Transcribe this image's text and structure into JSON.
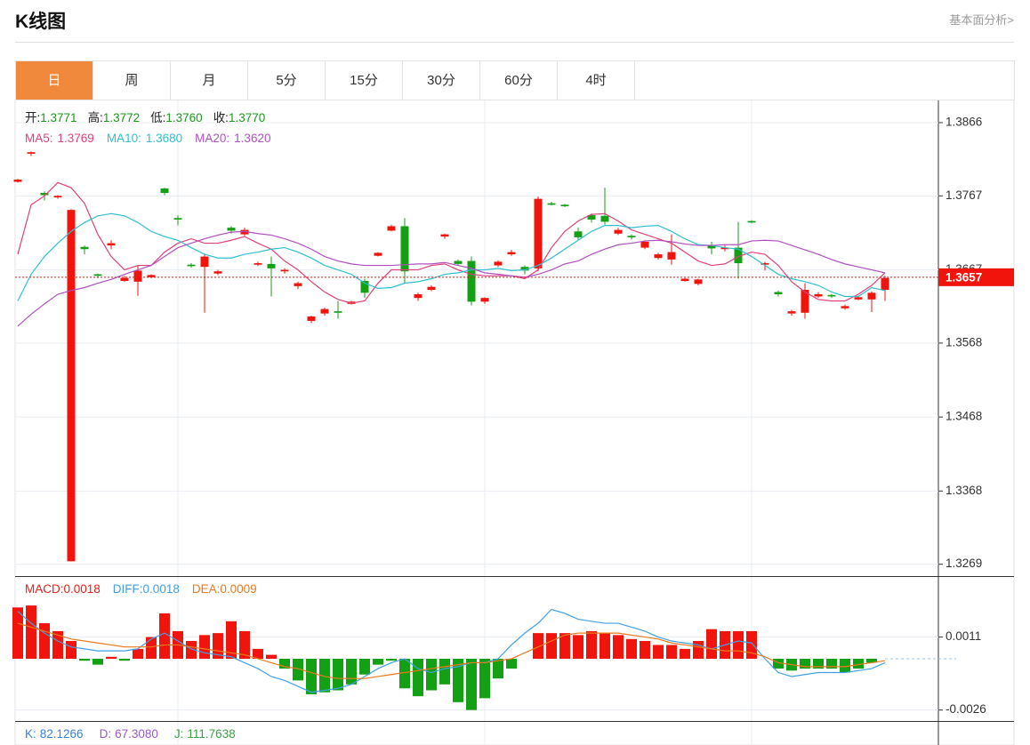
{
  "header": {
    "title": "K线图",
    "link": "基本面分析>"
  },
  "tabs": {
    "items": [
      "日",
      "周",
      "月",
      "5分",
      "15分",
      "30分",
      "60分",
      "4时"
    ],
    "active": 0
  },
  "chart_data": [
    {
      "type": "candlestick",
      "info": {
        "labels": [
          "开:",
          "高:",
          "低:",
          "收:"
        ],
        "values": [
          1.3771,
          1.3772,
          1.376,
          1.377
        ],
        "value_labels": [
          "1.3771",
          "1.3772",
          "1.3760",
          "1.3770"
        ],
        "color": "#1a9a1a"
      },
      "categories": [
        null,
        null,
        null,
        null,
        null,
        null,
        null,
        null,
        null,
        null,
        null,
        null,
        null,
        null,
        null,
        null,
        null,
        null,
        null,
        null,
        null,
        null,
        null,
        null,
        null,
        null,
        null,
        null,
        null,
        null,
        null,
        null,
        null,
        null,
        null,
        null,
        null,
        null,
        null,
        null,
        null,
        null,
        null,
        null,
        null,
        null,
        null,
        null,
        null,
        null,
        null,
        null,
        null,
        null,
        null,
        null,
        null,
        null,
        null,
        null,
        null,
        null,
        null,
        null,
        null,
        null
      ],
      "open": [
        1.3786,
        1.3824,
        1.3771,
        1.3765,
        1.3273,
        1.3698,
        1.3661,
        1.37,
        1.3652,
        1.3651,
        1.3657,
        1.3777,
        1.3737,
        1.3674,
        1.3671,
        1.3662,
        1.3724,
        1.3715,
        1.3674,
        1.3675,
        1.3665,
        1.3645,
        1.3598,
        1.3608,
        1.3611,
        1.3621,
        1.3652,
        1.3686,
        1.372,
        1.3726,
        1.3629,
        1.364,
        1.3712,
        1.3679,
        1.3679,
        1.3624,
        1.3673,
        1.3688,
        1.3671,
        1.3669,
        1.3757,
        1.3755,
        1.3719,
        1.3741,
        1.374,
        1.3716,
        1.3713,
        1.3697,
        1.3683,
        1.3681,
        1.3652,
        1.3648,
        1.37,
        1.3695,
        1.3697,
        1.3733,
        1.3674,
        1.3637,
        1.3608,
        1.3609,
        1.3631,
        1.3633,
        1.3615,
        1.3627,
        1.3627,
        1.364
      ],
      "close": [
        1.3789,
        1.3826,
        1.3768,
        1.3767,
        1.3748,
        1.3695,
        1.3659,
        1.3703,
        1.3656,
        1.3666,
        1.366,
        1.3771,
        1.3735,
        1.3672,
        1.3685,
        1.3665,
        1.372,
        1.3721,
        1.3676,
        1.3669,
        1.3667,
        1.3649,
        1.3604,
        1.3614,
        1.3609,
        1.3624,
        1.3636,
        1.369,
        1.3726,
        1.3665,
        1.3634,
        1.3644,
        1.3715,
        1.3675,
        1.3624,
        1.3629,
        1.3678,
        1.3691,
        1.3666,
        1.3763,
        1.3755,
        1.3753,
        1.3711,
        1.3735,
        1.3732,
        1.3721,
        1.3711,
        1.3705,
        1.3688,
        1.3691,
        1.3655,
        1.3654,
        1.3696,
        1.3697,
        1.3676,
        1.3731,
        1.3676,
        1.3634,
        1.3611,
        1.364,
        1.3634,
        1.3631,
        1.3618,
        1.363,
        1.3636,
        1.3656
      ],
      "high": [
        1.379,
        1.3827,
        1.3773,
        1.3768,
        1.3749,
        1.37,
        1.3662,
        1.3707,
        1.3659,
        1.3673,
        1.3661,
        1.3778,
        1.3741,
        1.3676,
        1.3689,
        1.3667,
        1.3726,
        1.3724,
        1.3678,
        1.3685,
        1.3669,
        1.3651,
        1.3605,
        1.3616,
        1.3625,
        1.3625,
        1.3655,
        1.3691,
        1.3728,
        1.3737,
        1.3636,
        1.3646,
        1.3716,
        1.3681,
        1.3685,
        1.363,
        1.368,
        1.3694,
        1.3673,
        1.3766,
        1.3759,
        1.3756,
        1.3724,
        1.3743,
        1.3778,
        1.3724,
        1.3715,
        1.3707,
        1.369,
        1.3715,
        1.3656,
        1.3655,
        1.3705,
        1.37,
        1.3732,
        1.3734,
        1.3678,
        1.3639,
        1.3613,
        1.3649,
        1.3637,
        1.3634,
        1.362,
        1.3632,
        1.3638,
        1.3659
      ],
      "low": [
        1.3785,
        1.3821,
        1.3761,
        1.3763,
        1.3273,
        1.3688,
        1.3656,
        1.3695,
        1.3651,
        1.3632,
        1.3656,
        1.3768,
        1.3727,
        1.367,
        1.3609,
        1.366,
        1.3716,
        1.3713,
        1.3672,
        1.3631,
        1.3662,
        1.3641,
        1.3595,
        1.3605,
        1.3601,
        1.362,
        1.3629,
        1.3685,
        1.3719,
        1.3649,
        1.3625,
        1.3638,
        1.3709,
        1.3673,
        1.3619,
        1.3621,
        1.3671,
        1.3686,
        1.3661,
        1.3665,
        1.3754,
        1.3752,
        1.3707,
        1.3731,
        1.3728,
        1.3714,
        1.3708,
        1.3695,
        1.3681,
        1.3674,
        1.3651,
        1.3646,
        1.3688,
        1.3692,
        1.3655,
        1.373,
        1.3666,
        1.3631,
        1.3605,
        1.3601,
        1.3629,
        1.3629,
        1.3613,
        1.3626,
        1.361,
        1.3625
      ],
      "up_color": "#f0140c",
      "down_color": "#14a014",
      "series": [
        {
          "name": "MA5:",
          "color": "#e0407a",
          "legend_value": 1.3769,
          "legend_label": "1.3769",
          "values": [
            1.3688,
            1.3755,
            1.3767,
            1.3785,
            1.3778,
            1.3757,
            1.3715,
            1.3685,
            1.3667,
            1.3673,
            1.3673,
            1.3691,
            1.3703,
            1.3709,
            1.3703,
            1.3703,
            1.3707,
            1.3712,
            1.3703,
            1.3695,
            1.3679,
            1.3667,
            1.3651,
            1.3637,
            1.3627,
            1.3622,
            1.3625,
            1.3649,
            1.3667,
            1.3667,
            1.3667,
            1.3673,
            1.3675,
            1.3667,
            1.3661,
            1.3659,
            1.3659,
            1.3659,
            1.3655,
            1.3667,
            1.3697,
            1.3719,
            1.3733,
            1.3742,
            1.3743,
            1.3733,
            1.3721,
            1.3715,
            1.3709,
            1.3703,
            1.3691,
            1.3679,
            1.3673,
            1.3675,
            1.3685,
            1.3691,
            1.3688,
            1.3673,
            1.3651,
            1.3637,
            1.3627,
            1.3625,
            1.3625,
            1.3634,
            1.3646,
            1.3663
          ]
        },
        {
          "name": "MA10:",
          "color": "#2fbfd0",
          "legend_value": 1.368,
          "legend_label": "1.3680",
          "values": [
            1.3625,
            1.3661,
            1.3685,
            1.3703,
            1.3719,
            1.3731,
            1.374,
            1.3743,
            1.374,
            1.3731,
            1.3719,
            1.3712,
            1.3707,
            1.3697,
            1.3688,
            1.3683,
            1.3683,
            1.3688,
            1.3691,
            1.3695,
            1.3697,
            1.3691,
            1.3683,
            1.3673,
            1.3667,
            1.3661,
            1.3649,
            1.3642,
            1.3643,
            1.3649,
            1.3651,
            1.3655,
            1.3661,
            1.3663,
            1.3667,
            1.3667,
            1.3669,
            1.3666,
            1.3667,
            1.3673,
            1.3683,
            1.3695,
            1.3707,
            1.3719,
            1.3727,
            1.3727,
            1.3724,
            1.3726,
            1.3727,
            1.3719,
            1.3709,
            1.3701,
            1.37,
            1.3697,
            1.3695,
            1.3685,
            1.3673,
            1.3661,
            1.3655,
            1.3651,
            1.3646,
            1.3637,
            1.3631,
            1.3631,
            1.3643,
            1.3639
          ]
        },
        {
          "name": "MA20:",
          "color": "#b050c0",
          "legend_value": 1.362,
          "legend_label": "1.3620",
          "values": [
            1.3591,
            1.3607,
            1.3621,
            1.3634,
            1.3639,
            1.3643,
            1.3649,
            1.3654,
            1.3661,
            1.3667,
            1.3673,
            1.3685,
            1.3697,
            1.3703,
            1.3709,
            1.3714,
            1.3718,
            1.3719,
            1.3716,
            1.3714,
            1.3709,
            1.3703,
            1.3695,
            1.3685,
            1.3679,
            1.3675,
            1.3673,
            1.3673,
            1.3673,
            1.3674,
            1.3675,
            1.3675,
            1.3677,
            1.3673,
            1.3669,
            1.3663,
            1.3661,
            1.3659,
            1.3657,
            1.3661,
            1.3667,
            1.3675,
            1.3679,
            1.3688,
            1.3695,
            1.3701,
            1.3703,
            1.3706,
            1.3707,
            1.3705,
            1.3702,
            1.37,
            1.37,
            1.3701,
            1.3701,
            1.3706,
            1.3707,
            1.3706,
            1.37,
            1.3694,
            1.3688,
            1.3681,
            1.3675,
            1.3671,
            1.3667,
            1.3663
          ]
        }
      ],
      "ylim": [
        1.3253,
        1.3896
      ],
      "yticks": [
        1.3269,
        1.3368,
        1.3468,
        1.3568,
        1.3667,
        1.3767,
        1.3866
      ],
      "current_price": 1.3657,
      "grid": true
    },
    {
      "type": "macd",
      "label": "MACD:",
      "legend_value": 0.0018,
      "color": "#e8201a",
      "values": [
        0.0026,
        0.0027,
        0.0018,
        0.0014,
        0.0009,
        -0.0001,
        -0.0003,
        0.0001,
        -0.0001,
        0.0005,
        0.0011,
        0.0023,
        0.0014,
        0.0009,
        0.0012,
        0.0013,
        0.0019,
        0.0014,
        0.0005,
        0.0002,
        -0.0005,
        -0.0011,
        -0.0018,
        -0.0017,
        -0.0016,
        -0.0013,
        -0.0008,
        -0.0003,
        -0.0001,
        -0.0015,
        -0.0019,
        -0.0016,
        -0.0013,
        -0.0022,
        -0.0026,
        -0.002,
        -0.001,
        -0.0005,
        0,
        0.0013,
        0.0013,
        0.0013,
        0.0012,
        0.0014,
        0.0013,
        0.0012,
        0.001,
        0.0009,
        0.0007,
        0.0007,
        0.0005,
        0.0009,
        0.0015,
        0.0014,
        0.0014,
        0.0014,
        0,
        -0.0005,
        -0.0006,
        -0.0005,
        -0.0005,
        -0.0005,
        -0.0007,
        -0.0005,
        -0.0002,
        0
      ],
      "up_color": "#f0140c",
      "down_color": "#14a014",
      "series": [
        {
          "name": "DIFF:",
          "color": "#3fa0e8",
          "legend_value": 0.0018,
          "values": [
            0.0024,
            0.0018,
            0.0013,
            0.0009,
            0.0006,
            0.0005,
            0.0004,
            0.0004,
            0.0004,
            0.0005,
            0.001,
            0.0013,
            0.0009,
            0.0005,
            0.0003,
            0.0002,
            0.0001,
            -0.0002,
            -0.0005,
            -0.0009,
            -0.0011,
            -0.0014,
            -0.0017,
            -0.0016,
            -0.0015,
            -0.0013,
            -0.0009,
            -0.0005,
            -0.0002,
            0,
            -0.0005,
            -0.0007,
            -0.0005,
            -0.0004,
            -0.0002,
            -0.0002,
            0,
            0.0007,
            0.0013,
            0.0018,
            0.0025,
            0.0023,
            0.002,
            0.0019,
            0.0018,
            0.0018,
            0.0016,
            0.0014,
            0.0011,
            0.0009,
            0.0008,
            0.0007,
            0.0005,
            0.0007,
            0.0009,
            0.0008,
            0,
            -0.0007,
            -0.0009,
            -0.0008,
            -0.0007,
            -0.0007,
            -0.0007,
            -0.0006,
            -0.0005,
            -0.0002
          ]
        },
        {
          "name": "DEA:",
          "color": "#e87a1e",
          "legend_value": 0.0009,
          "values": [
            0.0018,
            0.0016,
            0.0014,
            0.0012,
            0.001,
            0.0009,
            0.0008,
            0.0007,
            0.0006,
            0.0006,
            0.0006,
            0.0007,
            0.0007,
            0.0006,
            0.0005,
            0.0004,
            0.0003,
            0.0002,
            0,
            -0.0002,
            -0.0004,
            -0.0005,
            -0.0007,
            -0.0009,
            -0.001,
            -0.001,
            -0.001,
            -0.0009,
            -0.0008,
            -0.0007,
            -0.0006,
            -0.0005,
            -0.0004,
            -0.0003,
            -0.0002,
            -0.0002,
            -0.0001,
            0,
            0.0003,
            0.0006,
            0.0009,
            0.0012,
            0.0013,
            0.0013,
            0.0013,
            0.0013,
            0.0012,
            0.0011,
            0.001,
            0.0008,
            0.0007,
            0.0006,
            0.0005,
            0.0004,
            0.0004,
            0.0003,
            0.0001,
            -0.0002,
            -0.0003,
            -0.0004,
            -0.0004,
            -0.0004,
            -0.0004,
            -0.0003,
            -0.0002,
            -0.0001
          ]
        }
      ],
      "ylim": [
        -0.0032,
        0.0041
      ],
      "yticks": [
        -0.0026,
        0.0011
      ],
      "grid": true
    },
    {
      "type": "readout",
      "series": [
        {
          "name": "K:",
          "color": "#3b82d8",
          "legend_value": 82.1266
        },
        {
          "name": "D:",
          "color": "#9a5bc8",
          "legend_value": 67.308,
          "legend_label": "67.3080"
        },
        {
          "name": "J:",
          "color": "#3aa04a",
          "legend_value": 111.7638
        }
      ]
    }
  ]
}
